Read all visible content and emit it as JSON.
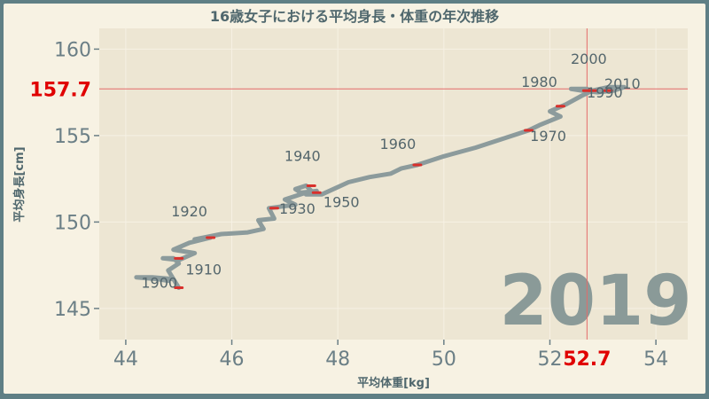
{
  "chart_data": {
    "type": "line",
    "title": "16歳女子における平均身長・体重の年次推移",
    "xlabel": "平均体重[kg]",
    "ylabel": "平均身長[cm]",
    "xlim": [
      43.5,
      54.6
    ],
    "ylim": [
      143.2,
      161.2
    ],
    "xticks": [
      44,
      46,
      48,
      50,
      52,
      54
    ],
    "yticks": [
      145,
      150,
      155,
      160
    ],
    "grid": true,
    "current_year": "2019",
    "highlight": {
      "x": 52.7,
      "y": 157.7,
      "x_label": "52.7",
      "y_label": "157.7"
    },
    "series": [
      {
        "points": [
          [
            44.8,
            146.6
          ],
          [
            44.6,
            146.7
          ],
          [
            44.2,
            146.8
          ],
          [
            44.5,
            146.8
          ],
          [
            44.9,
            146.7
          ],
          [
            45.0,
            146.2
          ],
          [
            44.8,
            147.2
          ],
          [
            45.0,
            147.6
          ],
          [
            44.9,
            147.9
          ],
          [
            44.7,
            147.9
          ],
          [
            45.0,
            147.8
          ],
          [
            45.3,
            148.2
          ],
          [
            44.9,
            148.4
          ],
          [
            45.2,
            148.8
          ],
          [
            45.6,
            149.1
          ],
          [
            45.3,
            149.0
          ],
          [
            45.8,
            149.3
          ],
          [
            46.3,
            149.4
          ],
          [
            46.6,
            149.6
          ],
          [
            46.5,
            150.1
          ],
          [
            46.8,
            150.2
          ],
          [
            46.7,
            150.8
          ],
          [
            47.2,
            151.0
          ],
          [
            47.0,
            151.3
          ],
          [
            47.5,
            151.8
          ],
          [
            47.4,
            152.1
          ],
          [
            47.2,
            151.9
          ],
          [
            47.3,
            151.7
          ],
          [
            47.6,
            151.8
          ],
          [
            47.4,
            151.6
          ],
          [
            47.7,
            151.6
          ],
          [
            48.2,
            152.3
          ],
          [
            48.6,
            152.6
          ],
          [
            49.0,
            152.8
          ],
          [
            49.2,
            153.1
          ],
          [
            49.5,
            153.3
          ],
          [
            50.0,
            153.8
          ],
          [
            50.6,
            154.3
          ],
          [
            51.1,
            154.8
          ],
          [
            51.6,
            155.3
          ],
          [
            51.8,
            155.6
          ],
          [
            52.2,
            156.1
          ],
          [
            52.0,
            156.4
          ],
          [
            52.3,
            156.8
          ],
          [
            52.6,
            157.3
          ],
          [
            52.8,
            157.6
          ],
          [
            53.1,
            157.8
          ],
          [
            53.4,
            157.8
          ],
          [
            53.2,
            157.6
          ],
          [
            52.9,
            157.5
          ],
          [
            52.6,
            157.6
          ],
          [
            52.4,
            157.7
          ],
          [
            52.7,
            157.7
          ]
        ]
      }
    ],
    "decade_markers": [
      {
        "label": "1900",
        "x": 45.0,
        "y": 146.2
      },
      {
        "label": "1910",
        "x": 45.0,
        "y": 147.9
      },
      {
        "label": "1920",
        "x": 45.6,
        "y": 149.1
      },
      {
        "label": "1930",
        "x": 46.8,
        "y": 150.8
      },
      {
        "label": "1940",
        "x": 47.5,
        "y": 152.1
      },
      {
        "label": "1950",
        "x": 47.6,
        "y": 151.7
      },
      {
        "label": "1960",
        "x": 49.5,
        "y": 153.3
      },
      {
        "label": "1970",
        "x": 51.6,
        "y": 155.3
      },
      {
        "label": "1980",
        "x": 52.2,
        "y": 156.7
      },
      {
        "label": "1990",
        "x": 52.7,
        "y": 157.6
      },
      {
        "label": "2000",
        "x": 52.8,
        "y": 157.6
      },
      {
        "label": "2010",
        "x": 53.1,
        "y": 157.6
      }
    ]
  }
}
